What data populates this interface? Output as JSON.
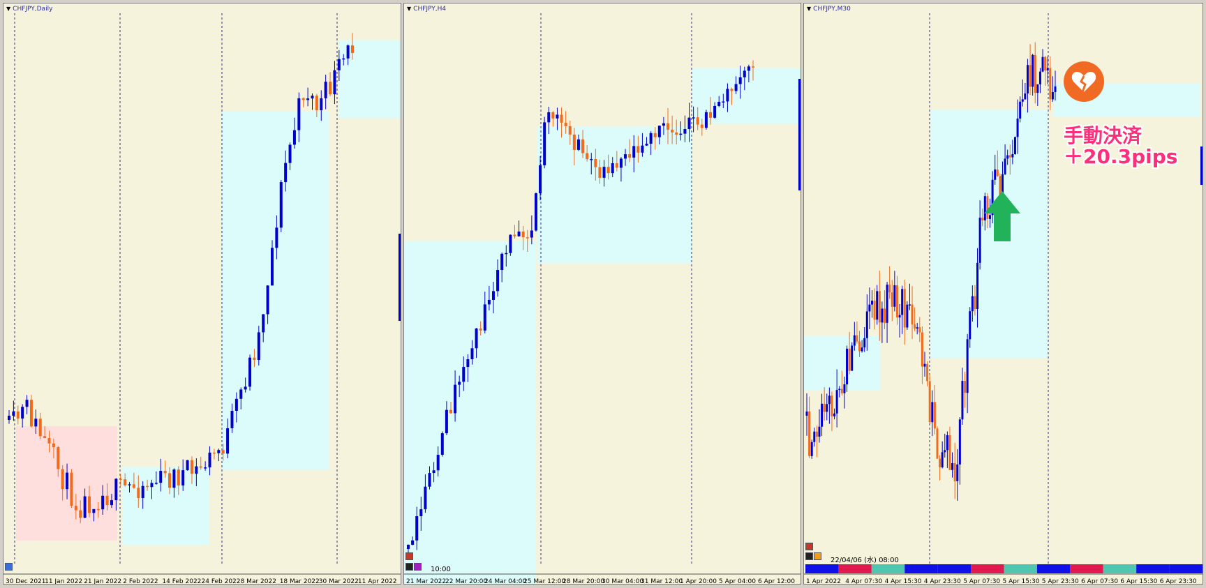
{
  "windows": [
    {
      "id": "daily",
      "title": "CHFJPY,Daily",
      "time_labels": [
        "30 Dec 2021",
        "11 Jan 2022",
        "21 Jan 2022",
        "2 Feb 2022",
        "14 Feb 2022",
        "24 Feb 2022",
        "8 Mar 2022",
        "18 Mar 2022",
        "30 Mar 2022",
        "11 Apr 2022"
      ]
    },
    {
      "id": "h4",
      "title": "CHFJPY,H4",
      "time_labels": [
        "21 Mar 2022",
        "22 Mar 20:00",
        "24 Mar 04:00",
        "25 Mar 12:00",
        "28 Mar 20:00",
        "30 Mar 04:00",
        "31 Mar 12:00",
        "1 Apr 20:00",
        "5 Apr 04:00",
        "6 Apr 12:00"
      ],
      "overlay_time": "10:00"
    },
    {
      "id": "m30",
      "title": "CHFJPY,M30",
      "time_labels": [
        "1 Apr 2022",
        "4 Apr 07:30",
        "4 Apr 15:30",
        "4 Apr 23:30",
        "5 Apr 07:30",
        "5 Apr 15:30",
        "5 Apr 23:30",
        "6 Apr 07:30",
        "6 Apr 15:30",
        "6 Apr 23:30"
      ],
      "overlay_datetime": "22/04/06 (水) 08:00"
    }
  ],
  "annotation": {
    "line1": "手動決済",
    "line2": "＋20.3pips"
  },
  "colors": {
    "bull": "#0000cc",
    "bear": "#f26a1b",
    "ma": "#1c7a1c",
    "zone_up": "#dcfbfb",
    "zone_down": "#ffdede",
    "background": "#f5f3dc",
    "annotation": "#ff2e7a",
    "arrow": "#22b35a",
    "badge": "#f06a24"
  },
  "icons": [
    "broken-heart-icon",
    "up-arrow-icon"
  ]
}
